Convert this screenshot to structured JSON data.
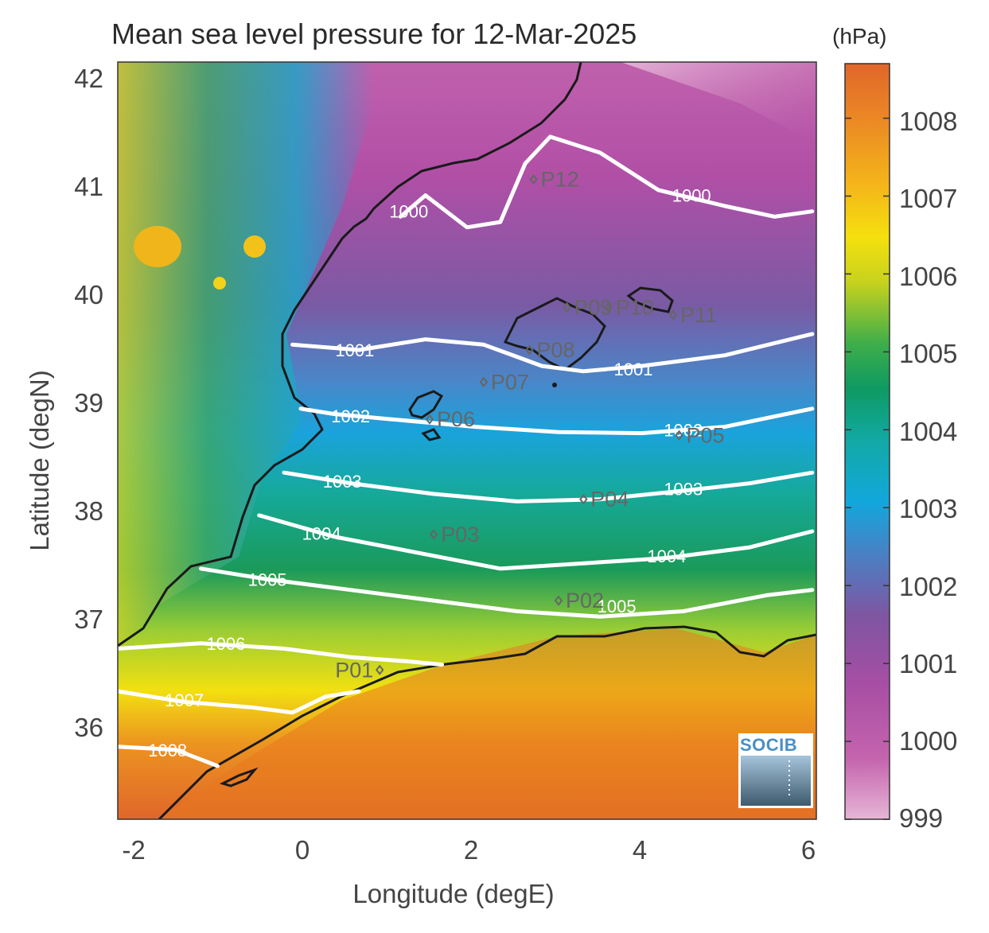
{
  "title": "Mean sea level pressure for 12-Mar-2025",
  "xlabel": "Longitude (degE)",
  "ylabel": "Latitude (degN)",
  "colorbar_unit": "(hPa)",
  "x_ticks": [
    "-2",
    "0",
    "2",
    "4",
    "6"
  ],
  "y_ticks": [
    "42",
    "41",
    "40",
    "39",
    "38",
    "37",
    "36"
  ],
  "colorbar_ticks": [
    "1008",
    "1007",
    "1006",
    "1005",
    "1004",
    "1003",
    "1002",
    "1001",
    "1000",
    "999"
  ],
  "logo_text": "SOCIB",
  "colors": {
    "high": "#e0662a",
    "mid_yellow": "#f2e010",
    "mid_green": "#1a9a5a",
    "mid_blue": "#1aa3dc",
    "low_purple": "#9a4e9e",
    "lowest_pink": "#e6b6d6",
    "contour": "#ffffff",
    "coast": "#1a1a1a"
  },
  "chart_data": {
    "type": "heatmap",
    "title": "Mean sea level pressure for 12-Mar-2025",
    "xlabel": "Longitude (degE)",
    "ylabel": "Latitude (degN)",
    "xlim": [
      -2.3,
      6.1
    ],
    "ylim": [
      35.1,
      42.2
    ],
    "colorbar": {
      "label": "(hPa)",
      "range": [
        999,
        1008.7
      ]
    },
    "contours": [
      {
        "level": "1000",
        "points": [
          [
            1.1,
            40.75
          ],
          [
            1.4,
            40.95
          ],
          [
            1.9,
            40.65
          ],
          [
            2.3,
            40.7
          ],
          [
            2.6,
            41.25
          ],
          [
            2.9,
            41.5
          ],
          [
            3.5,
            41.35
          ],
          [
            4.2,
            41.0
          ],
          [
            5.0,
            40.85
          ],
          [
            5.6,
            40.75
          ],
          [
            6.05,
            40.8
          ]
        ]
      },
      {
        "level": "1001",
        "points": [
          [
            -0.2,
            39.55
          ],
          [
            0.6,
            39.5
          ],
          [
            1.4,
            39.6
          ],
          [
            2.1,
            39.55
          ],
          [
            2.8,
            39.35
          ],
          [
            3.3,
            39.3
          ],
          [
            4.0,
            39.35
          ],
          [
            5.0,
            39.45
          ],
          [
            6.05,
            39.65
          ]
        ]
      },
      {
        "level": "1002",
        "points": [
          [
            -0.1,
            38.95
          ],
          [
            0.3,
            38.9
          ],
          [
            1.0,
            38.85
          ],
          [
            2.0,
            38.78
          ],
          [
            3.0,
            38.73
          ],
          [
            4.0,
            38.72
          ],
          [
            5.0,
            38.78
          ],
          [
            6.05,
            38.95
          ]
        ]
      },
      {
        "level": "1003",
        "points": [
          [
            -0.3,
            38.35
          ],
          [
            0.5,
            38.25
          ],
          [
            1.5,
            38.15
          ],
          [
            2.5,
            38.08
          ],
          [
            3.5,
            38.1
          ],
          [
            4.5,
            38.18
          ],
          [
            5.3,
            38.25
          ],
          [
            6.05,
            38.35
          ]
        ]
      },
      {
        "level": "1004",
        "points": [
          [
            -0.6,
            37.95
          ],
          [
            0.3,
            37.75
          ],
          [
            1.3,
            37.6
          ],
          [
            2.3,
            37.45
          ],
          [
            3.3,
            37.5
          ],
          [
            4.3,
            37.55
          ],
          [
            5.3,
            37.65
          ],
          [
            6.05,
            37.8
          ]
        ]
      },
      {
        "level": "1005",
        "points": [
          [
            -1.3,
            37.45
          ],
          [
            -0.5,
            37.35
          ],
          [
            0.5,
            37.25
          ],
          [
            1.5,
            37.15
          ],
          [
            2.5,
            37.05
          ],
          [
            3.5,
            37.0
          ],
          [
            4.5,
            37.05
          ],
          [
            5.5,
            37.2
          ],
          [
            6.05,
            37.25
          ]
        ]
      },
      {
        "level": "1006",
        "points": [
          [
            -2.3,
            36.7
          ],
          [
            -1.3,
            36.75
          ],
          [
            -0.3,
            36.7
          ],
          [
            0.5,
            36.62
          ],
          [
            1.2,
            36.58
          ],
          [
            1.6,
            36.55
          ]
        ]
      },
      {
        "level": "1007",
        "points": [
          [
            -2.3,
            36.3
          ],
          [
            -1.5,
            36.2
          ],
          [
            -0.7,
            36.15
          ],
          [
            -0.2,
            36.1
          ],
          [
            0.2,
            36.25
          ],
          [
            0.6,
            36.3
          ]
        ]
      },
      {
        "level": "1008",
        "points": [
          [
            -2.3,
            35.78
          ],
          [
            -1.6,
            35.75
          ],
          [
            -1.1,
            35.6
          ]
        ]
      }
    ],
    "contour_labels": [
      {
        "text": "1000",
        "lon": 1.2,
        "lat": 40.8
      },
      {
        "text": "1000",
        "lon": 4.6,
        "lat": 40.95
      },
      {
        "text": "1001",
        "lon": 0.55,
        "lat": 39.5
      },
      {
        "text": "1001",
        "lon": 3.9,
        "lat": 39.32
      },
      {
        "text": "1002",
        "lon": 0.5,
        "lat": 38.88
      },
      {
        "text": "1002",
        "lon": 4.5,
        "lat": 38.75
      },
      {
        "text": "1003",
        "lon": 0.4,
        "lat": 38.27
      },
      {
        "text": "1003",
        "lon": 4.5,
        "lat": 38.2
      },
      {
        "text": "1004",
        "lon": 0.15,
        "lat": 37.78
      },
      {
        "text": "1004",
        "lon": 4.3,
        "lat": 37.57
      },
      {
        "text": "1005",
        "lon": -0.5,
        "lat": 37.35
      },
      {
        "text": "1005",
        "lon": 3.7,
        "lat": 37.1
      },
      {
        "text": "1006",
        "lon": -1.0,
        "lat": 36.75
      },
      {
        "text": "1007",
        "lon": -1.5,
        "lat": 36.22
      },
      {
        "text": "1008",
        "lon": -1.7,
        "lat": 35.75
      }
    ],
    "stations": [
      {
        "name": "P01",
        "lon": 0.85,
        "lat": 36.5
      },
      {
        "name": "P02",
        "lon": 3.0,
        "lat": 37.15
      },
      {
        "name": "P03",
        "lon": 1.5,
        "lat": 37.77
      },
      {
        "name": "P04",
        "lon": 3.3,
        "lat": 38.1
      },
      {
        "name": "P05",
        "lon": 4.45,
        "lat": 38.7
      },
      {
        "name": "P06",
        "lon": 1.45,
        "lat": 38.85
      },
      {
        "name": "P07",
        "lon": 2.1,
        "lat": 39.2
      },
      {
        "name": "P08",
        "lon": 2.65,
        "lat": 39.5
      },
      {
        "name": "P09",
        "lon": 3.1,
        "lat": 39.9
      },
      {
        "name": "P10",
        "lon": 3.6,
        "lat": 39.9
      },
      {
        "name": "P11",
        "lon": 4.38,
        "lat": 39.83
      },
      {
        "name": "P12",
        "lon": 2.7,
        "lat": 41.1
      }
    ]
  }
}
